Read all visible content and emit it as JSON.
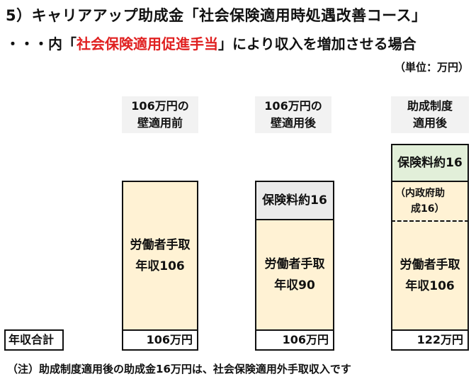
{
  "title": "5）キャリアアップ助成金「社会保険適用時処遇改善コース」",
  "subtitle": {
    "prefix": "・・・内「",
    "highlight": "社会保険適用促進手当",
    "suffix": "」により収入を増加させる場合"
  },
  "unit": "（単位：万円）",
  "columns": [
    {
      "header_line1": "106万円の",
      "header_line2": "壁適用前",
      "main_line1": "労働者手取",
      "main_line2": "年収106",
      "total": "106万円"
    },
    {
      "header_line1": "106万円の",
      "header_line2": "壁適用後",
      "insurance": "保険料約16",
      "main_line1": "労働者手取",
      "main_line2": "年収90",
      "total": "106万円"
    },
    {
      "header_line1": "助成制度",
      "header_line2": "適用後",
      "insurance": "保険料約16",
      "subsidy_line1": "（内政府助",
      "subsidy_line2": "成16）",
      "main_line1": "労働者手取",
      "main_line2": "年収106",
      "total": "122万円"
    }
  ],
  "total_label": "年収合計",
  "note": "（注）助成制度適用後の助成金16万円は、社会保険適用外手取収入です",
  "colors": {
    "highlight_red": "#e02020",
    "income_fill": "#fff2d4",
    "insurance_gray": "#ebebeb",
    "insurance_green": "#e2efd9"
  }
}
